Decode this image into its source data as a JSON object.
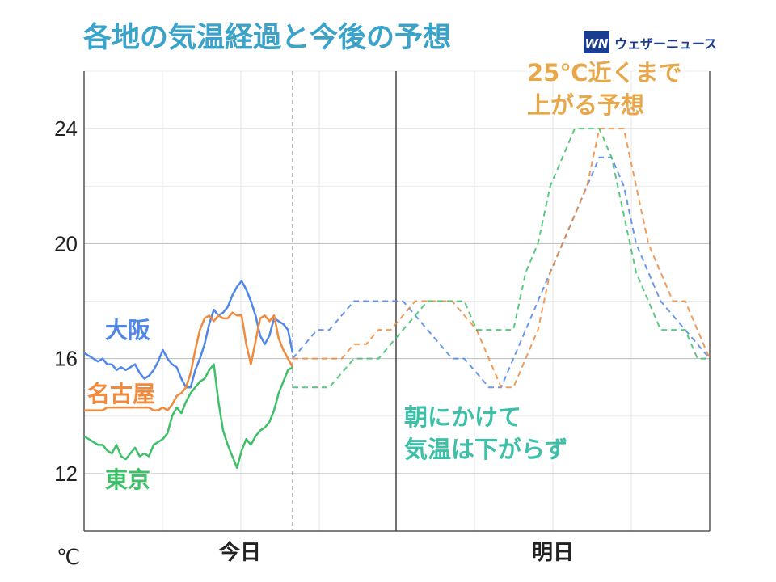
{
  "title": "各地の気温経過と今後の予想",
  "brand": {
    "logo_text": "WN",
    "name": "ウェザーニュース",
    "color": "#1a3d8f"
  },
  "chart_data": {
    "type": "line",
    "xlabel_unit": "℃",
    "ylim": [
      10,
      26
    ],
    "y_ticks": [
      12,
      16,
      20,
      24
    ],
    "x_sections": [
      "今日",
      "明日"
    ],
    "grid": true,
    "annotations": [
      {
        "lines": [
          "25℃近くまで",
          "上がる予想"
        ],
        "color": "#e8a84a"
      },
      {
        "lines": [
          "朝にかけて",
          "気温は下がらず"
        ],
        "color": "#3cc0a8"
      }
    ],
    "series": [
      {
        "name": "大阪",
        "color": "#4f86e8",
        "observed": [
          16.2,
          16.1,
          16.0,
          15.9,
          16.0,
          15.8,
          15.8,
          15.6,
          15.7,
          15.6,
          15.7,
          15.8,
          15.5,
          15.3,
          15.4,
          15.6,
          15.9,
          16.3,
          16.0,
          15.8,
          15.7,
          15.3,
          15.0,
          15.0,
          15.6,
          16.0,
          16.5,
          17.2,
          17.7,
          17.5,
          17.6,
          17.8,
          18.2,
          18.5,
          18.7,
          18.4,
          18.0,
          17.5,
          16.8,
          16.5,
          16.8,
          17.4,
          17.3,
          17.2,
          17.0,
          16.2
        ],
        "forecast": [
          16,
          16.5,
          17,
          17,
          17.5,
          18,
          18,
          18,
          18,
          18,
          17.5,
          17,
          16.5,
          16,
          16,
          15.5,
          15,
          15,
          16,
          17,
          18,
          19,
          20,
          21,
          22,
          23,
          23,
          22,
          20,
          19,
          18,
          17.5,
          17,
          16.5,
          16
        ]
      },
      {
        "name": "名古屋",
        "color": "#f08a3c",
        "observed": [
          14.2,
          14.2,
          14.2,
          14.2,
          14.2,
          14.3,
          14.3,
          14.3,
          14.3,
          14.3,
          14.3,
          14.3,
          14.3,
          14.3,
          14.3,
          14.2,
          14.2,
          14.3,
          14.2,
          14.4,
          14.7,
          14.8,
          15.0,
          15.5,
          16.3,
          17.0,
          17.4,
          17.5,
          17.3,
          17.5,
          17.4,
          17.4,
          17.6,
          17.5,
          17.5,
          16.5,
          15.8,
          16.6,
          17.4,
          17.5,
          17.3,
          17.5,
          16.7,
          16.3,
          16.0,
          15.7
        ],
        "forecast": [
          16,
          16,
          16,
          16,
          16,
          16.5,
          16.5,
          17,
          17,
          17.5,
          18,
          18,
          18,
          18,
          17.5,
          17,
          16,
          15,
          15,
          16,
          17,
          19,
          20,
          21,
          22,
          24,
          24,
          24,
          22,
          20,
          19,
          18,
          18,
          17,
          16
        ]
      },
      {
        "name": "東京",
        "color": "#3dc068",
        "observed": [
          13.3,
          13.2,
          13.1,
          13.0,
          13.0,
          12.8,
          12.7,
          13.0,
          12.6,
          12.5,
          12.7,
          12.9,
          12.6,
          12.7,
          12.6,
          13.0,
          13.1,
          13.2,
          13.4,
          14.0,
          14.3,
          14.1,
          14.5,
          14.8,
          15.0,
          15.2,
          15.3,
          15.6,
          15.8,
          14.5,
          13.5,
          13.0,
          12.6,
          12.2,
          12.8,
          13.2,
          13.0,
          13.3,
          13.5,
          13.6,
          13.8,
          14.2,
          14.8,
          15.2,
          15.6,
          15.7
        ],
        "forecast": [
          15,
          15,
          15,
          15,
          15.5,
          16,
          16,
          16,
          16.5,
          17,
          17.5,
          18,
          18,
          18,
          18,
          17,
          17,
          17,
          17,
          19,
          20,
          22,
          23,
          24,
          24,
          24,
          23,
          21,
          19,
          18,
          17,
          17,
          17,
          16,
          16
        ]
      }
    ],
    "series_label_positions": [
      "upper-left",
      "middle-left",
      "lower-left"
    ]
  }
}
